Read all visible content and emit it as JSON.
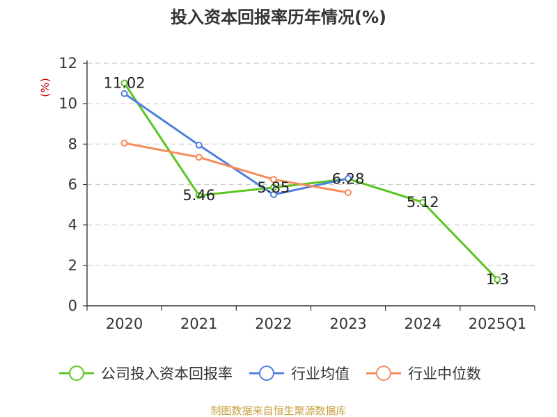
{
  "chart_data": {
    "type": "line",
    "title": "投入资本回报率历年情况(%)",
    "ylabel": "(%)",
    "categories": [
      "2020",
      "2021",
      "2022",
      "2023",
      "2024",
      "2025Q1"
    ],
    "ylim": [
      0,
      12
    ],
    "yticks": [
      0,
      2,
      4,
      6,
      8,
      10,
      12
    ],
    "grid": true,
    "legend_position": "bottom",
    "series": [
      {
        "name": "公司投入资本回报率",
        "color": "#5cc424",
        "values": [
          11.02,
          5.46,
          5.85,
          6.28,
          5.12,
          1.3
        ],
        "labels": [
          "11.02",
          "5.46",
          "5.85",
          "6.28",
          "5.12",
          "1.3"
        ]
      },
      {
        "name": "行业均值",
        "color": "#4f7fdc",
        "values": [
          10.5,
          7.95,
          5.5,
          6.3,
          null,
          null
        ]
      },
      {
        "name": "行业中位数",
        "color": "#f58c5a",
        "values": [
          8.05,
          7.35,
          6.25,
          5.6,
          null,
          null
        ]
      }
    ]
  },
  "source": "制图数据来自恒生聚源数据库"
}
